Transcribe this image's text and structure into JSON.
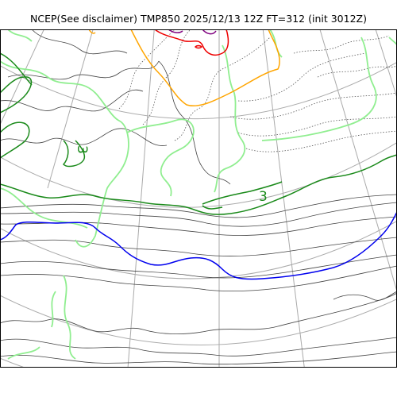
{
  "title": "NCEP(See disclaimer) TMP850 2025/12/13 12Z FT=312 (init 3012Z)",
  "contour_labels": [
    "3",
    "3"
  ],
  "colors": {
    "background": "#ffffff",
    "frame": "#000000",
    "graticule": "#aaaaaa",
    "contour_thin": "#444444",
    "contour_green_dark": "#1a8a1a",
    "contour_green_light": "#90ee90",
    "contour_zero": "#0000ee",
    "contour_orange": "#ffa500",
    "contour_red": "#ee0000",
    "contour_purple": "#800080"
  }
}
